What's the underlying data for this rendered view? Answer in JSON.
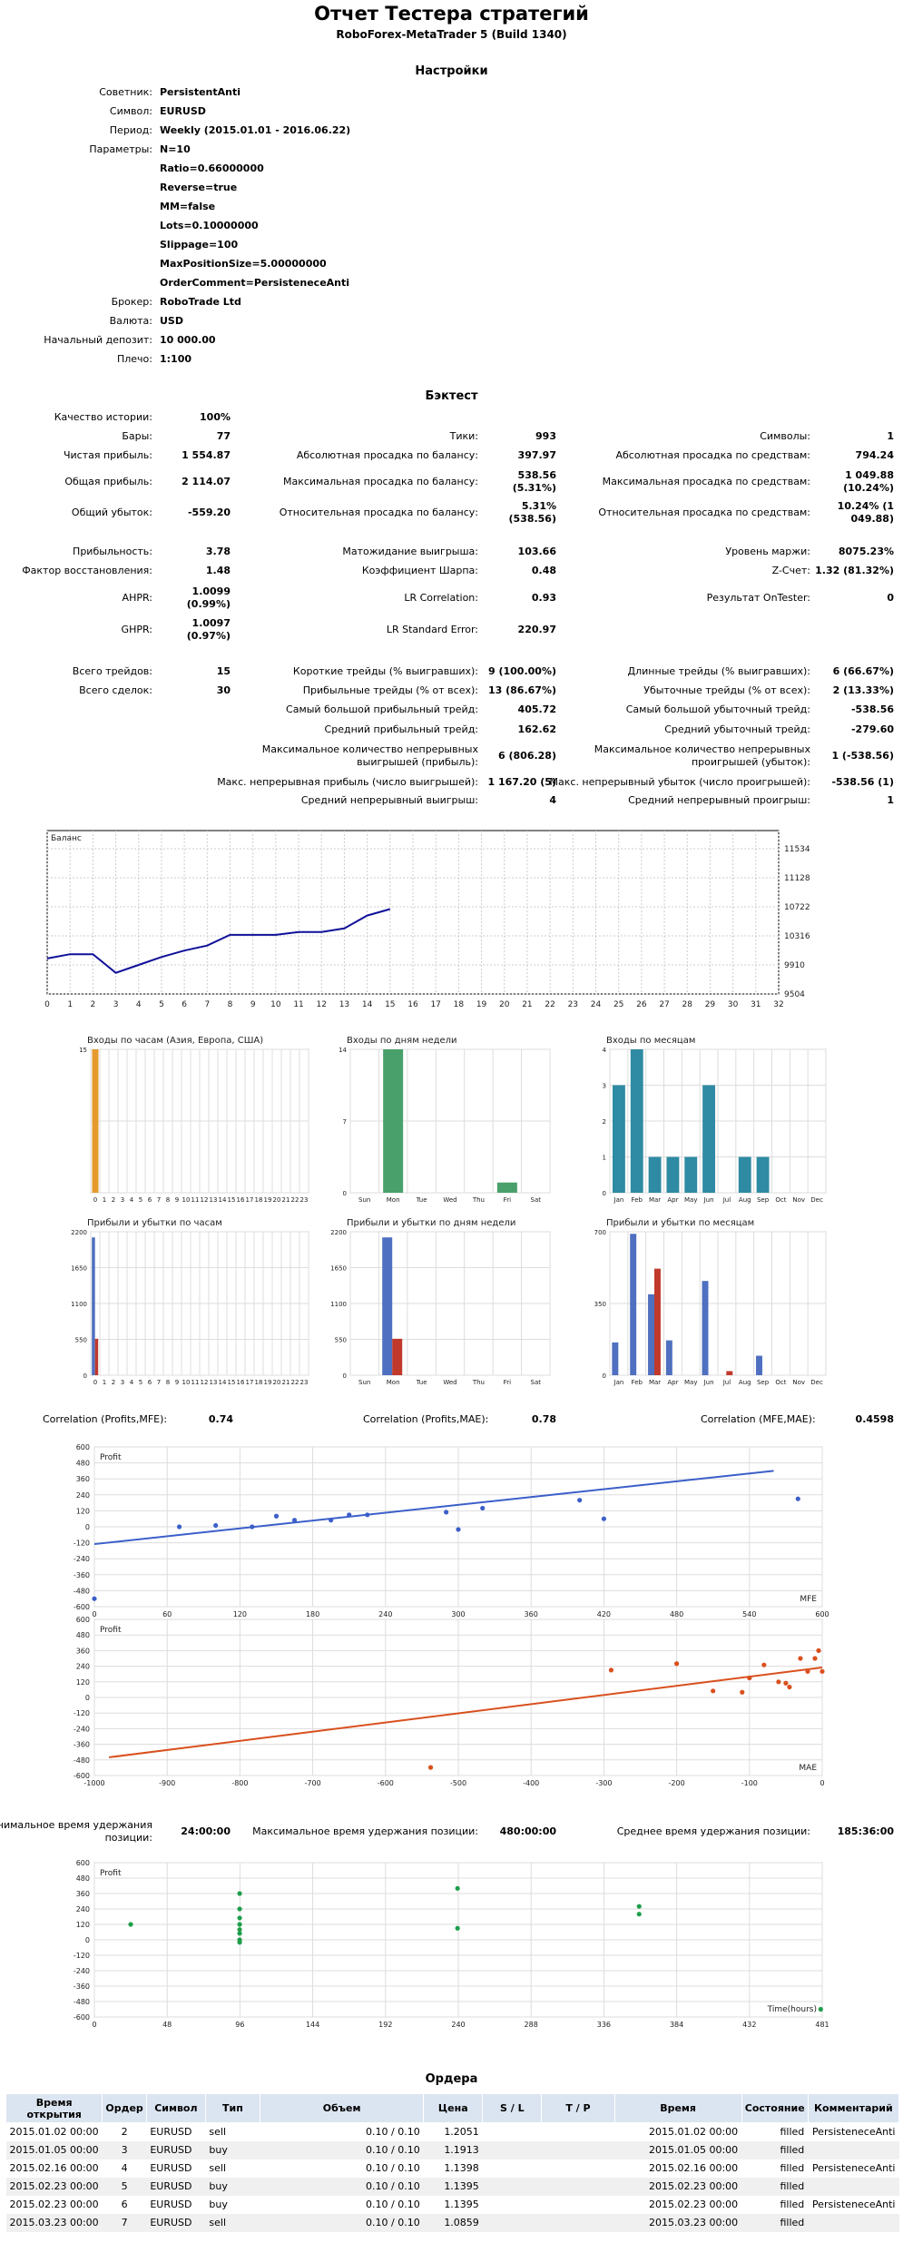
{
  "header": {
    "title": "Отчет Тестера стратегий",
    "subtitle": "RoboForex-MetaTrader 5 (Build 1340)"
  },
  "settings": {
    "heading": "Настройки",
    "rows": [
      {
        "label": "Советник:",
        "value": "PersistentAnti"
      },
      {
        "label": "Символ:",
        "value": "EURUSD"
      },
      {
        "label": "Период:",
        "value": "Weekly (2015.01.01 - 2016.06.22)"
      },
      {
        "label": "Параметры:",
        "value": "N=10"
      },
      {
        "label": "",
        "value": "Ratio=0.66000000"
      },
      {
        "label": "",
        "value": "Reverse=true"
      },
      {
        "label": "",
        "value": "MM=false"
      },
      {
        "label": "",
        "value": "Lots=0.10000000"
      },
      {
        "label": "",
        "value": "Slippage=100"
      },
      {
        "label": "",
        "value": "MaxPositionSize=5.00000000"
      },
      {
        "label": "",
        "value": "OrderComment=PersisteneceAnti"
      },
      {
        "label": "Брокер:",
        "value": "RoboTrade Ltd"
      },
      {
        "label": "Валюта:",
        "value": "USD"
      },
      {
        "label": "Начальный депозит:",
        "value": "10 000.00"
      },
      {
        "label": "Плечо:",
        "value": "1:100"
      }
    ]
  },
  "backtest": {
    "heading": "Бэктест",
    "history_quality_label": "Качество истории:",
    "history_quality_value": "100%",
    "bars_label": "Бары:",
    "bars_value": "77",
    "ticks_label": "Тики:",
    "ticks_value": "993",
    "symbols_label": "Символы:",
    "symbols_value": "1",
    "net_profit_label": "Чистая прибыль:",
    "net_profit_value": "1 554.87",
    "abs_dd_bal_label": "Абсолютная просадка по балансу:",
    "abs_dd_bal_value": "397.97",
    "abs_dd_eq_label": "Абсолютная просадка по средствам:",
    "abs_dd_eq_value": "794.24",
    "gross_profit_label": "Общая прибыль:",
    "gross_profit_value": "2 114.07",
    "max_dd_bal_label": "Максимальная просадка по балансу:",
    "max_dd_bal_value": "538.56",
    "max_dd_bal_value2": "(5.31%)",
    "max_dd_eq_label": "Максимальная просадка по средствам:",
    "max_dd_eq_value": "1 049.88",
    "max_dd_eq_value2": "(10.24%)",
    "gross_loss_label": "Общий убыток:",
    "gross_loss_value": "-559.20",
    "rel_dd_bal_label": "Относительная просадка по балансу:",
    "rel_dd_bal_value": "5.31%",
    "rel_dd_bal_value2": "(538.56)",
    "rel_dd_eq_label": "Относительная просадка по средствам:",
    "rel_dd_eq_value": "10.24% (1",
    "rel_dd_eq_value2": "049.88)",
    "profitability_label": "Прибыльность:",
    "profitability_value": "3.78",
    "expected_label": "Матожидание выигрыша:",
    "expected_value": "103.66",
    "margin_label": "Уровень маржи:",
    "margin_value": "8075.23%",
    "recovery_label": "Фактор восстановления:",
    "recovery_value": "1.48",
    "sharpe_label": "Коэффициент Шарпа:",
    "sharpe_value": "0.48",
    "zscore_label": "Z-Счет:",
    "zscore_value": "1.32 (81.32%)",
    "ahpr_label": "AHPR:",
    "ahpr_value": "1.0099",
    "ahpr_value2": "(0.99%)",
    "lrcorr_label": "LR Correlation:",
    "lrcorr_value": "0.93",
    "ontester_label": "Результат OnTester:",
    "ontester_value": "0",
    "ghpr_label": "GHPR:",
    "ghpr_value": "1.0097",
    "ghpr_value2": "(0.97%)",
    "lrerr_label": "LR Standard Error:",
    "lrerr_value": "220.97",
    "total_trades_label": "Всего трейдов:",
    "total_trades_value": "15",
    "short_label": "Короткие трейды (% выигравших):",
    "short_value": "9 (100.00%)",
    "long_label": "Длинные трейды (% выигравших):",
    "long_value": "6 (66.67%)",
    "total_deals_label": "Всего сделок:",
    "total_deals_value": "30",
    "profit_trades_label": "Прибыльные трейды (% от всех):",
    "profit_trades_value": "13 (86.67%)",
    "loss_trades_label": "Убыточные трейды (% от всех):",
    "loss_trades_value": "2 (13.33%)",
    "largest_profit_label": "Самый большой прибыльный трейд:",
    "largest_profit_value": "405.72",
    "largest_loss_label": "Самый большой убыточный трейд:",
    "largest_loss_value": "-538.56",
    "avg_profit_label": "Средний прибыльный трейд:",
    "avg_profit_value": "162.62",
    "avg_loss_label": "Средний убыточный трейд:",
    "avg_loss_value": "-279.60",
    "max_cons_wins_label1": "Максимальное количество непрерывных",
    "max_cons_wins_label2": "выигрышей (прибыль):",
    "max_cons_wins_value": "6 (806.28)",
    "max_cons_losses_label1": "Максимальное количество непрерывных",
    "max_cons_losses_label2": "проигрышей (убыток):",
    "max_cons_losses_value": "1 (-538.56)",
    "max_cons_profit_label": "Макс. непрерывная прибыль (число выигрышей):",
    "max_cons_profit_value": "1 167.20 (5)",
    "max_cons_loss_label": "Макс. непрерывный убыток (число проигрышей):",
    "max_cons_loss_value": "-538.56 (1)",
    "avg_cons_wins_label": "Средний непрерывный выигрыш:",
    "avg_cons_wins_value": "4",
    "avg_cons_losses_label": "Средний непрерывный проигрыш:",
    "avg_cons_losses_value": "1"
  },
  "chart_data": [
    {
      "type": "line",
      "title": "Баланс",
      "x": [
        0,
        1,
        2,
        3,
        4,
        5,
        6,
        7,
        8,
        9,
        10,
        11,
        12,
        13,
        14,
        15
      ],
      "y": [
        10000,
        10060,
        10060,
        9800,
        9910,
        10020,
        10110,
        10180,
        10330,
        10330,
        10330,
        10370,
        10370,
        10420,
        10600,
        10690
      ],
      "x_ticks": [
        "0",
        "1",
        "2",
        "3",
        "4",
        "5",
        "6",
        "7",
        "8",
        "9",
        "10",
        "11",
        "12",
        "13",
        "14",
        "15",
        "16",
        "17",
        "18",
        "19",
        "20",
        "21",
        "22",
        "23",
        "24",
        "25",
        "26",
        "27",
        "28",
        "29",
        "30",
        "31",
        "32"
      ],
      "y_ticks": [
        "11534",
        "11128",
        "10722",
        "10316",
        "9910",
        "9504"
      ],
      "ylim": [
        9504,
        11534
      ],
      "xlim": [
        0,
        32
      ],
      "grid": true
    },
    {
      "type": "bar",
      "title": "Входы по часам (Азия, Европа, США)",
      "categories": [
        "0",
        "1",
        "2",
        "3",
        "4",
        "5",
        "6",
        "7",
        "8",
        "9",
        "10",
        "11",
        "12",
        "13",
        "14",
        "15",
        "16",
        "17",
        "18",
        "19",
        "20",
        "21",
        "22",
        "23"
      ],
      "values": [
        15,
        0,
        0,
        0,
        0,
        0,
        0,
        0,
        0,
        0,
        0,
        0,
        0,
        0,
        0,
        0,
        0,
        0,
        0,
        0,
        0,
        0,
        0,
        0
      ],
      "y_ticks": [
        "15",
        "",
        ""
      ],
      "ylim": [
        0,
        15
      ],
      "color": "#e59a2e"
    },
    {
      "type": "bar",
      "title": "Входы по дням недели",
      "categories": [
        "Sun",
        "Mon",
        "Tue",
        "Wed",
        "Thu",
        "Fri",
        "Sat"
      ],
      "values": [
        0,
        14,
        0,
        0,
        0,
        1,
        0
      ],
      "y_ticks": [
        "14",
        "7",
        "0"
      ],
      "ylim": [
        0,
        14
      ],
      "color": "#4aa06b"
    },
    {
      "type": "bar",
      "title": "Входы по месяцам",
      "categories": [
        "Jan",
        "Feb",
        "Mar",
        "Apr",
        "May",
        "Jun",
        "Jul",
        "Aug",
        "Sep",
        "Oct",
        "Nov",
        "Dec"
      ],
      "values": [
        3,
        4,
        1,
        1,
        1,
        3,
        0,
        1,
        1,
        0,
        0,
        0
      ],
      "y_ticks": [
        "4",
        "3",
        "2",
        "1",
        "0"
      ],
      "ylim": [
        0,
        4
      ],
      "color": "#2f8aa3"
    },
    {
      "type": "bar",
      "title": "Прибыли и убытки по часам",
      "categories": [
        "0",
        "1",
        "2",
        "3",
        "4",
        "5",
        "6",
        "7",
        "8",
        "9",
        "10",
        "11",
        "12",
        "13",
        "14",
        "15",
        "16",
        "17",
        "18",
        "19",
        "20",
        "21",
        "22",
        "23"
      ],
      "series": [
        {
          "name": "",
          "values": [
            2114,
            0,
            0,
            0,
            0,
            0,
            0,
            0,
            0,
            0,
            0,
            0,
            0,
            0,
            0,
            0,
            0,
            0,
            0,
            0,
            0,
            0,
            0,
            0
          ],
          "color": "#4f6fc0"
        },
        {
          "name": "",
          "values": [
            559,
            0,
            0,
            0,
            0,
            0,
            0,
            0,
            0,
            0,
            0,
            0,
            0,
            0,
            0,
            0,
            0,
            0,
            0,
            0,
            0,
            0,
            0,
            0
          ],
          "color": "#c0392b"
        }
      ],
      "y_ticks": [
        "2200",
        "1650",
        "1100",
        "550",
        "0"
      ],
      "ylim": [
        0,
        2200
      ]
    },
    {
      "type": "bar",
      "title": "Прибыли и убытки по дням недели",
      "categories": [
        "Sun",
        "Mon",
        "Tue",
        "Wed",
        "Thu",
        "Fri",
        "Sat"
      ],
      "series": [
        {
          "name": "",
          "values": [
            0,
            2114,
            0,
            0,
            0,
            0,
            0
          ],
          "color": "#4f6fc0"
        },
        {
          "name": "",
          "values": [
            0,
            559,
            0,
            0,
            0,
            0,
            0
          ],
          "color": "#c0392b"
        }
      ],
      "y_ticks": [
        "2200",
        "1650",
        "1100",
        "550",
        "0"
      ],
      "ylim": [
        0,
        2200
      ]
    },
    {
      "type": "bar",
      "title": "Прибыли и убытки по месяцам",
      "categories": [
        "Jan",
        "Feb",
        "Mar",
        "Apr",
        "May",
        "Jun",
        "Jul",
        "Aug",
        "Sep",
        "Oct",
        "Nov",
        "Dec"
      ],
      "series": [
        {
          "name": "",
          "values": [
            160,
            690,
            395,
            170,
            0,
            460,
            0,
            0,
            95,
            0,
            0,
            0
          ],
          "color": "#4f6fc0"
        },
        {
          "name": "",
          "values": [
            0,
            0,
            520,
            0,
            0,
            0,
            20,
            0,
            0,
            0,
            0,
            0
          ],
          "color": "#c0392b"
        }
      ],
      "y_ticks": [
        "700",
        "350",
        "0"
      ],
      "ylim": [
        0,
        700
      ]
    },
    {
      "type": "scatter",
      "ylabel": "Profit",
      "xlabel": "MFE",
      "x": [
        0,
        70,
        100,
        130,
        150,
        165,
        195,
        210,
        225,
        290,
        300,
        320,
        400,
        420,
        580
      ],
      "y": [
        -540,
        0,
        10,
        0,
        80,
        50,
        50,
        90,
        90,
        110,
        -20,
        140,
        200,
        60,
        210
      ],
      "trend": [
        [
          0,
          -130
        ],
        [
          560,
          420
        ]
      ],
      "xlim": [
        0,
        600
      ],
      "ylim": [
        -600,
        600
      ],
      "x_ticks": [
        "0",
        "60",
        "120",
        "180",
        "240",
        "300",
        "360",
        "420",
        "480",
        "540",
        "600"
      ],
      "y_ticks": [
        "600",
        "480",
        "360",
        "240",
        "120",
        "0",
        "-120",
        "-240",
        "-360",
        "-480",
        "-600"
      ],
      "color": "#3b5fc9"
    },
    {
      "type": "scatter",
      "ylabel": "Profit",
      "xlabel": "MAE",
      "x": [
        -538,
        -290,
        -200,
        -150,
        -110,
        -100,
        -80,
        -60,
        -50,
        -45,
        -30,
        -20,
        -10,
        -5,
        0
      ],
      "y": [
        -538,
        210,
        260,
        50,
        40,
        150,
        250,
        120,
        110,
        80,
        300,
        200,
        300,
        360,
        200
      ],
      "trend": [
        [
          -980,
          -460
        ],
        [
          0,
          230
        ]
      ],
      "xlim": [
        -1000,
        0
      ],
      "ylim": [
        -600,
        600
      ],
      "x_ticks": [
        "-1000",
        "-900",
        "-800",
        "-700",
        "-600",
        "-500",
        "-400",
        "-300",
        "-200",
        "-100",
        "0"
      ],
      "y_ticks": [
        "600",
        "480",
        "360",
        "240",
        "120",
        "0",
        "-120",
        "-240",
        "-360",
        "-480",
        "-600"
      ],
      "color": "#d9501e"
    },
    {
      "type": "scatter",
      "ylabel": "Profit",
      "xlabel": "Time(hours)",
      "x": [
        24,
        96,
        96,
        96,
        96,
        96,
        96,
        96,
        96,
        240,
        240,
        360,
        360,
        480
      ],
      "y": [
        120,
        360,
        240,
        170,
        120,
        80,
        50,
        0,
        -20,
        400,
        90,
        260,
        200,
        -540
      ],
      "xlim": [
        0,
        481
      ],
      "ylim": [
        -600,
        600
      ],
      "x_ticks": [
        "0",
        "48",
        "96",
        "144",
        "192",
        "240",
        "288",
        "336",
        "384",
        "432",
        "481"
      ],
      "y_ticks": [
        "600",
        "480",
        "360",
        "240",
        "120",
        "0",
        "-120",
        "-240",
        "-360",
        "-480",
        "-600"
      ],
      "color": "#1e9e4a"
    }
  ],
  "correlation": {
    "pmfe_label": "Correlation (Profits,MFE):",
    "pmfe_value": "0.74",
    "pmae_label": "Correlation (Profits,MAE):",
    "pmae_value": "0.78",
    "mfemae_label": "Correlation (MFE,MAE):",
    "mfemae_value": "0.4598"
  },
  "holding": {
    "min_label1": "Минимальное время удержания",
    "min_label2": "позиции:",
    "min_value": "24:00:00",
    "max_label": "Максимальное время удержания позиции:",
    "max_value": "480:00:00",
    "avg_label": "Среднее время удержания позиции:",
    "avg_value": "185:36:00"
  },
  "orders": {
    "heading": "Ордера",
    "columns": [
      "Время открытия",
      "Ордер",
      "Символ",
      "Тип",
      "Объем",
      "Цена",
      "S / L",
      "T / P",
      "Время",
      "Состояние",
      "Комментарий"
    ],
    "rows": [
      [
        "2015.01.02 00:00",
        "2",
        "EURUSD",
        "sell",
        "0.10 / 0.10",
        "1.2051",
        "",
        "",
        "2015.01.02 00:00",
        "filled",
        "PersisteneceAnti"
      ],
      [
        "2015.01.05 00:00",
        "3",
        "EURUSD",
        "buy",
        "0.10 / 0.10",
        "1.1913",
        "",
        "",
        "2015.01.05 00:00",
        "filled",
        ""
      ],
      [
        "2015.02.16 00:00",
        "4",
        "EURUSD",
        "sell",
        "0.10 / 0.10",
        "1.1398",
        "",
        "",
        "2015.02.16 00:00",
        "filled",
        "PersisteneceAnti"
      ],
      [
        "2015.02.23 00:00",
        "5",
        "EURUSD",
        "buy",
        "0.10 / 0.10",
        "1.1395",
        "",
        "",
        "2015.02.23 00:00",
        "filled",
        ""
      ],
      [
        "2015.02.23 00:00",
        "6",
        "EURUSD",
        "buy",
        "0.10 / 0.10",
        "1.1395",
        "",
        "",
        "2015.02.23 00:00",
        "filled",
        "PersisteneceAnti"
      ],
      [
        "2015.03.23 00:00",
        "7",
        "EURUSD",
        "sell",
        "0.10 / 0.10",
        "1.0859",
        "",
        "",
        "2015.03.23 00:00",
        "filled",
        ""
      ]
    ]
  }
}
